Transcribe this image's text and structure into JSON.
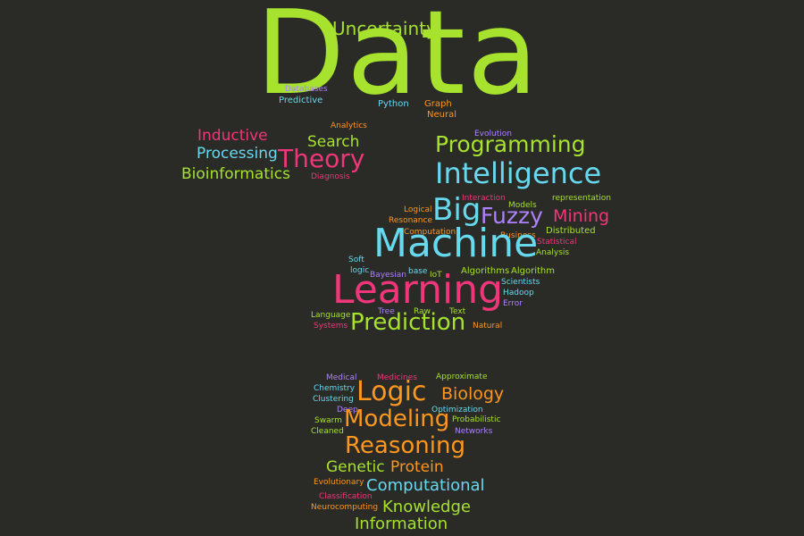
{
  "colors": {
    "background": "#2a2a27",
    "green": "#a6e22e",
    "blue": "#66d9ef",
    "pink": "#f0367a",
    "purple": "#ae81ff",
    "orange": "#fd971f",
    "yellow": "#e6db74"
  },
  "words": [
    {
      "text": "Data",
      "color": "#a6e22e"
    },
    {
      "text": "Uncertainty",
      "color": "#a6e22e"
    },
    {
      "text": "Databases",
      "color": "#ae81ff"
    },
    {
      "text": "Predictive",
      "color": "#66d9ef"
    },
    {
      "text": "Python",
      "color": "#66d9ef"
    },
    {
      "text": "Graph",
      "color": "#fd971f"
    },
    {
      "text": "Neural",
      "color": "#fd971f"
    },
    {
      "text": "Analytics",
      "color": "#fd971f"
    },
    {
      "text": "Evolution",
      "color": "#ae81ff"
    },
    {
      "text": "Inductive",
      "color": "#f0367a"
    },
    {
      "text": "Search",
      "color": "#a6e22e"
    },
    {
      "text": "Programming",
      "color": "#a6e22e"
    },
    {
      "text": "Processing",
      "color": "#66d9ef"
    },
    {
      "text": "Theory",
      "color": "#f0367a"
    },
    {
      "text": "Bioinformatics",
      "color": "#a6e22e"
    },
    {
      "text": "Diagnosis",
      "color": "#f0367a"
    },
    {
      "text": "Intelligence",
      "color": "#66d9ef"
    },
    {
      "text": "Interaction",
      "color": "#f0367a"
    },
    {
      "text": "Models",
      "color": "#a6e22e"
    },
    {
      "text": "representation",
      "color": "#a6e22e"
    },
    {
      "text": "Logical",
      "color": "#fd971f"
    },
    {
      "text": "Big",
      "color": "#66d9ef"
    },
    {
      "text": "Fuzzy",
      "color": "#ae81ff"
    },
    {
      "text": "Mining",
      "color": "#f0367a"
    },
    {
      "text": "Resonance",
      "color": "#fd971f"
    },
    {
      "text": "Computation",
      "color": "#fd971f"
    },
    {
      "text": "Business",
      "color": "#fd971f"
    },
    {
      "text": "Distributed",
      "color": "#a6e22e"
    },
    {
      "text": "Machine",
      "color": "#66d9ef"
    },
    {
      "text": "Statistical",
      "color": "#f0367a"
    },
    {
      "text": "Analysis",
      "color": "#a6e22e"
    },
    {
      "text": "Soft",
      "color": "#66d9ef"
    },
    {
      "text": "logic",
      "color": "#66d9ef"
    },
    {
      "text": "Bayesian",
      "color": "#ae81ff"
    },
    {
      "text": "base",
      "color": "#66d9ef"
    },
    {
      "text": "IoT",
      "color": "#a6e22e"
    },
    {
      "text": "Algorithms",
      "color": "#a6e22e"
    },
    {
      "text": "Algorithm",
      "color": "#a6e22e"
    },
    {
      "text": "Scientists",
      "color": "#66d9ef"
    },
    {
      "text": "Learning",
      "color": "#f0367a"
    },
    {
      "text": "Hadoop",
      "color": "#66d9ef"
    },
    {
      "text": "Error",
      "color": "#ae81ff"
    },
    {
      "text": "Tree",
      "color": "#ae81ff"
    },
    {
      "text": "Raw",
      "color": "#a6e22e"
    },
    {
      "text": "Text",
      "color": "#a6e22e"
    },
    {
      "text": "Language",
      "color": "#a6e22e"
    },
    {
      "text": "Prediction",
      "color": "#a6e22e"
    },
    {
      "text": "Systems",
      "color": "#f0367a"
    },
    {
      "text": "Natural",
      "color": "#fd971f"
    },
    {
      "text": "Medical",
      "color": "#ae81ff"
    },
    {
      "text": "Medicines",
      "color": "#f0367a"
    },
    {
      "text": "Approximate",
      "color": "#a6e22e"
    },
    {
      "text": "Chemistry",
      "color": "#66d9ef"
    },
    {
      "text": "Logic",
      "color": "#fd971f"
    },
    {
      "text": "Biology",
      "color": "#fd971f"
    },
    {
      "text": "Clustering",
      "color": "#66d9ef"
    },
    {
      "text": "Deep",
      "color": "#ae81ff"
    },
    {
      "text": "Optimization",
      "color": "#66d9ef"
    },
    {
      "text": "Modeling",
      "color": "#fd971f"
    },
    {
      "text": "Swarm",
      "color": "#a6e22e"
    },
    {
      "text": "Probabilistic",
      "color": "#a6e22e"
    },
    {
      "text": "Cleaned",
      "color": "#a6e22e"
    },
    {
      "text": "Networks",
      "color": "#ae81ff"
    },
    {
      "text": "Reasoning",
      "color": "#fd971f"
    },
    {
      "text": "Genetic",
      "color": "#a6e22e"
    },
    {
      "text": "Protein",
      "color": "#fd971f"
    },
    {
      "text": "Evolutionary",
      "color": "#fd971f"
    },
    {
      "text": "Computational",
      "color": "#66d9ef"
    },
    {
      "text": "Classification",
      "color": "#f0367a"
    },
    {
      "text": "Neurocomputing",
      "color": "#fd971f"
    },
    {
      "text": "Knowledge",
      "color": "#a6e22e"
    },
    {
      "text": "Information",
      "color": "#a6e22e"
    }
  ]
}
